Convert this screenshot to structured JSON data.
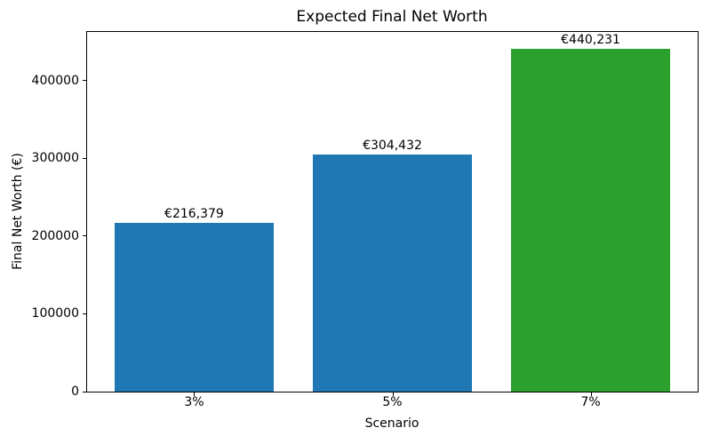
{
  "chart_data": {
    "type": "bar",
    "title": "Expected Final Net Worth",
    "xlabel": "Scenario",
    "ylabel": "Final Net Worth (€)",
    "categories": [
      "3%",
      "5%",
      "7%"
    ],
    "values": [
      216379,
      304432,
      440231
    ],
    "bar_labels": [
      "€216,379",
      "€304,432",
      "€440,231"
    ],
    "bar_colors": [
      "#1f77b4",
      "#1f77b4",
      "#2ca02c"
    ],
    "ylim": [
      0,
      462243
    ],
    "yticks": [
      0,
      100000,
      200000,
      300000,
      400000
    ],
    "ytick_labels": [
      "0",
      "100000",
      "200000",
      "300000",
      "400000"
    ],
    "grid": false,
    "legend": "none",
    "background_color": "#ffffff",
    "axis_color": "#000000"
  }
}
